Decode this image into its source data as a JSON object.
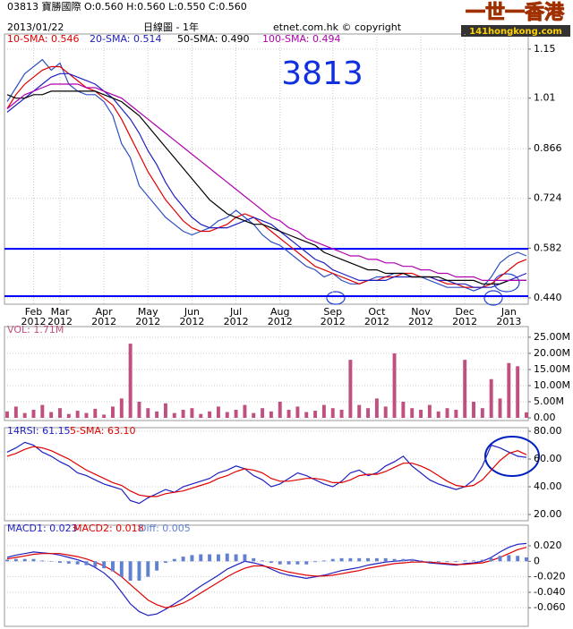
{
  "header": {
    "quote": "03813 寶勝國際  O:0.560 H:0.560 L:0.550  C:0.560",
    "date": "2013/01/22",
    "period": "日線圖 - 1年",
    "copyright": "etnet.com.hk © copyright"
  },
  "logo": {
    "title": "一世一香港",
    "url": "141hongkong.com"
  },
  "chart_data": [
    {
      "type": "line",
      "annotation": "3813",
      "grid": true,
      "categories": [
        null,
        null,
        null,
        "Feb 2012",
        null,
        null,
        "Mar 2012",
        null,
        null,
        null,
        null,
        "Apr 2012",
        null,
        null,
        null,
        null,
        "May 2012",
        null,
        null,
        null,
        null,
        "Jun 2012",
        null,
        null,
        null,
        null,
        "Jul 2012",
        null,
        null,
        null,
        null,
        "Aug 2012",
        null,
        null,
        null,
        null,
        null,
        "Sep 2012",
        null,
        null,
        null,
        null,
        "Oct 2012",
        null,
        null,
        null,
        null,
        "Nov 2012",
        null,
        null,
        null,
        null,
        "Dec 2012",
        null,
        null,
        null,
        null,
        "Jan 2013",
        null,
        null
      ],
      "ylim": [
        0.422,
        1.188
      ],
      "yticks": [
        1.15,
        1.01,
        0.866,
        0.724,
        0.582,
        {
          "value": 0.44,
          "label": "0.440"
        }
      ],
      "hlines": [
        {
          "value": 0.58,
          "color": "#0000ff"
        },
        {
          "value": 0.445,
          "color": "#0000ff"
        }
      ],
      "series": [
        {
          "color": "#3050c0",
          "values": [
            1.0,
            1.04,
            1.08,
            1.1,
            1.12,
            1.09,
            1.11,
            1.05,
            1.03,
            1.02,
            1.02,
            1.0,
            0.96,
            0.88,
            0.84,
            0.76,
            0.73,
            0.7,
            0.67,
            0.65,
            0.63,
            0.62,
            0.63,
            0.64,
            0.66,
            0.67,
            0.69,
            0.67,
            0.65,
            0.62,
            0.6,
            0.59,
            0.57,
            0.55,
            0.53,
            0.52,
            0.5,
            0.51,
            0.49,
            0.48,
            0.48,
            0.49,
            0.5,
            0.5,
            0.51,
            0.51,
            0.5,
            0.5,
            0.49,
            0.48,
            0.47,
            0.47,
            0.47,
            0.46,
            0.47,
            0.5,
            0.54,
            0.56,
            0.57,
            0.56
          ]
        },
        {
          "name": "10-SMA: 0.546",
          "color": "#e00000",
          "values": [
            0.98,
            1.02,
            1.05,
            1.07,
            1.09,
            1.1,
            1.1,
            1.08,
            1.06,
            1.04,
            1.03,
            1.01,
            0.99,
            0.95,
            0.9,
            0.85,
            0.8,
            0.76,
            0.72,
            0.69,
            0.66,
            0.64,
            0.63,
            0.63,
            0.64,
            0.65,
            0.67,
            0.68,
            0.67,
            0.65,
            0.63,
            0.61,
            0.59,
            0.57,
            0.55,
            0.53,
            0.52,
            0.51,
            0.5,
            0.49,
            0.48,
            0.49,
            0.49,
            0.5,
            0.5,
            0.51,
            0.51,
            0.5,
            0.5,
            0.49,
            0.48,
            0.48,
            0.47,
            0.47,
            0.47,
            0.48,
            0.5,
            0.52,
            0.54,
            0.55
          ]
        },
        {
          "name": "20-SMA: 0.514",
          "color": "#2020c0",
          "values": [
            0.97,
            0.99,
            1.01,
            1.03,
            1.05,
            1.07,
            1.08,
            1.08,
            1.07,
            1.06,
            1.05,
            1.03,
            1.01,
            0.98,
            0.95,
            0.91,
            0.86,
            0.82,
            0.77,
            0.73,
            0.7,
            0.67,
            0.65,
            0.64,
            0.64,
            0.64,
            0.65,
            0.66,
            0.67,
            0.66,
            0.65,
            0.63,
            0.61,
            0.59,
            0.57,
            0.55,
            0.54,
            0.52,
            0.51,
            0.5,
            0.49,
            0.49,
            0.49,
            0.49,
            0.5,
            0.5,
            0.5,
            0.5,
            0.5,
            0.49,
            0.49,
            0.48,
            0.48,
            0.47,
            0.47,
            0.47,
            0.48,
            0.49,
            0.5,
            0.51
          ]
        },
        {
          "name": "50-SMA: 0.490",
          "color": "#000000",
          "values": [
            1.02,
            1.01,
            1.01,
            1.02,
            1.02,
            1.03,
            1.03,
            1.03,
            1.03,
            1.03,
            1.03,
            1.02,
            1.01,
            1.0,
            0.98,
            0.96,
            0.93,
            0.9,
            0.87,
            0.84,
            0.81,
            0.78,
            0.75,
            0.72,
            0.7,
            0.68,
            0.67,
            0.66,
            0.65,
            0.65,
            0.64,
            0.63,
            0.62,
            0.61,
            0.6,
            0.59,
            0.57,
            0.56,
            0.55,
            0.54,
            0.53,
            0.52,
            0.52,
            0.51,
            0.51,
            0.51,
            0.5,
            0.5,
            0.5,
            0.5,
            0.49,
            0.49,
            0.49,
            0.49,
            0.48,
            0.48,
            0.48,
            0.49,
            0.49,
            0.49
          ]
        },
        {
          "name": "100-SMA: 0.494",
          "color": "#b000b0",
          "values": [
            0.98,
            1.0,
            1.02,
            1.03,
            1.04,
            1.05,
            1.05,
            1.05,
            1.05,
            1.04,
            1.04,
            1.03,
            1.02,
            1.01,
            0.99,
            0.97,
            0.95,
            0.93,
            0.91,
            0.89,
            0.87,
            0.85,
            0.83,
            0.81,
            0.79,
            0.77,
            0.75,
            0.73,
            0.71,
            0.69,
            0.67,
            0.66,
            0.64,
            0.63,
            0.61,
            0.6,
            0.59,
            0.58,
            0.57,
            0.56,
            0.56,
            0.55,
            0.55,
            0.54,
            0.54,
            0.53,
            0.53,
            0.52,
            0.52,
            0.51,
            0.51,
            0.5,
            0.5,
            0.5,
            0.49,
            0.49,
            0.49,
            0.49,
            0.49,
            0.49
          ]
        }
      ]
    },
    {
      "type": "bar",
      "grid": true,
      "ylim": [
        -830000,
        28300000
      ],
      "yticks": [
        {
          "value": 25000000,
          "label": "25.00M"
        },
        {
          "value": 20000000,
          "label": "20.00M"
        },
        {
          "value": 15000000,
          "label": "15.00M"
        },
        {
          "value": 10000000,
          "label": "10.00M"
        },
        {
          "value": 5000000,
          "label": "5.00M"
        },
        {
          "value": 0,
          "label": "0.00"
        }
      ],
      "series": [
        {
          "name": "VOL: 1.71M",
          "color": "#c05080",
          "values": [
            2000000,
            3500000,
            1500000,
            2500000,
            4000000,
            1800000,
            3000000,
            1200000,
            2200000,
            1500000,
            2800000,
            1000000,
            3500000,
            6000000,
            23000000,
            5000000,
            3000000,
            2000000,
            4500000,
            1500000,
            2500000,
            3000000,
            1200000,
            2000000,
            3500000,
            1800000,
            2500000,
            4000000,
            1500000,
            3000000,
            2000000,
            5000000,
            2500000,
            3500000,
            1800000,
            2200000,
            4000000,
            3000000,
            2500000,
            18000000,
            4000000,
            3000000,
            6000000,
            3500000,
            20000000,
            5000000,
            3000000,
            2500000,
            4000000,
            2000000,
            3000000,
            2500000,
            18000000,
            5000000,
            3000000,
            12000000,
            6000000,
            17000000,
            16000000,
            1710000
          ]
        }
      ]
    },
    {
      "type": "line",
      "grid": true,
      "ylim": [
        15.5,
        82.6
      ],
      "yticks": [
        {
          "value": 80,
          "label": "80.00"
        },
        {
          "value": 60,
          "label": "60.00"
        },
        {
          "value": 40,
          "label": "40.00"
        },
        {
          "value": 20,
          "label": "20.00"
        }
      ],
      "series": [
        {
          "name": "14RSI: 61.15",
          "color": "#2020c0",
          "values": [
            65,
            68,
            72,
            70,
            65,
            62,
            58,
            55,
            50,
            48,
            45,
            42,
            40,
            38,
            30,
            28,
            32,
            35,
            38,
            36,
            40,
            42,
            44,
            46,
            50,
            52,
            55,
            53,
            48,
            45,
            40,
            42,
            46,
            50,
            48,
            45,
            42,
            40,
            44,
            50,
            52,
            48,
            50,
            55,
            58,
            62,
            55,
            50,
            45,
            42,
            40,
            38,
            40,
            45,
            55,
            70,
            68,
            65,
            62,
            61.15
          ]
        },
        {
          "name": "5-SMA: 63.10",
          "color": "#e00000",
          "values": [
            62,
            64,
            67,
            69,
            68,
            66,
            63,
            60,
            56,
            52,
            49,
            46,
            43,
            41,
            37,
            34,
            33,
            33,
            35,
            36,
            37,
            39,
            41,
            43,
            46,
            48,
            51,
            53,
            52,
            50,
            46,
            44,
            44,
            45,
            46,
            46,
            45,
            43,
            43,
            45,
            48,
            49,
            49,
            51,
            54,
            57,
            57,
            55,
            52,
            48,
            44,
            41,
            40,
            41,
            45,
            52,
            59,
            64,
            66,
            63.1
          ]
        }
      ]
    },
    {
      "type": "line",
      "grid": true,
      "ylim": [
        -0.084,
        0.0466
      ],
      "yticks": [
        {
          "value": 0.02,
          "label": "0.020"
        },
        0,
        {
          "value": -0.02,
          "label": "-0.020"
        },
        {
          "value": -0.04,
          "label": "-0.040"
        },
        {
          "value": -0.06,
          "label": "-0.060"
        }
      ],
      "series": [
        {
          "name": "MACD1: 0.023",
          "color": "#2020c0",
          "values": [
            0.005,
            0.008,
            0.01,
            0.012,
            0.011,
            0.01,
            0.008,
            0.005,
            0.002,
            -0.002,
            -0.008,
            -0.015,
            -0.025,
            -0.04,
            -0.055,
            -0.065,
            -0.07,
            -0.068,
            -0.062,
            -0.055,
            -0.048,
            -0.04,
            -0.032,
            -0.025,
            -0.018,
            -0.01,
            -0.005,
            0.0,
            -0.002,
            -0.005,
            -0.01,
            -0.015,
            -0.018,
            -0.02,
            -0.022,
            -0.02,
            -0.018,
            -0.015,
            -0.012,
            -0.01,
            -0.008,
            -0.005,
            -0.003,
            -0.001,
            0.0,
            0.001,
            0.002,
            0.0,
            -0.002,
            -0.003,
            -0.004,
            -0.005,
            -0.003,
            -0.002,
            0.0,
            0.005,
            0.012,
            0.018,
            0.022,
            0.023
          ]
        },
        {
          "name": "MACD2: 0.018",
          "color": "#e00000",
          "values": [
            0.003,
            0.005,
            0.007,
            0.009,
            0.01,
            0.01,
            0.01,
            0.008,
            0.006,
            0.003,
            -0.001,
            -0.006,
            -0.012,
            -0.02,
            -0.03,
            -0.04,
            -0.05,
            -0.056,
            -0.06,
            -0.058,
            -0.054,
            -0.048,
            -0.041,
            -0.034,
            -0.027,
            -0.02,
            -0.014,
            -0.009,
            -0.006,
            -0.006,
            -0.008,
            -0.011,
            -0.014,
            -0.016,
            -0.018,
            -0.019,
            -0.019,
            -0.018,
            -0.016,
            -0.014,
            -0.012,
            -0.009,
            -0.007,
            -0.005,
            -0.003,
            -0.002,
            -0.001,
            -0.001,
            -0.001,
            -0.002,
            -0.003,
            -0.004,
            -0.004,
            -0.003,
            -0.002,
            0.001,
            0.005,
            0.01,
            0.015,
            0.018
          ]
        },
        {
          "name": "Diff: 0.005",
          "color": "#6080d0",
          "style": "bar",
          "values": [
            0.002,
            0.003,
            0.003,
            0.003,
            0.001,
            0,
            -0.002,
            -0.003,
            -0.004,
            -0.005,
            -0.007,
            -0.009,
            -0.013,
            -0.02,
            -0.025,
            -0.025,
            -0.02,
            -0.012,
            -0.002,
            0.003,
            0.006,
            0.008,
            0.009,
            0.009,
            0.009,
            0.01,
            0.009,
            0.009,
            0.004,
            0.001,
            -0.002,
            -0.004,
            -0.004,
            -0.004,
            -0.004,
            -0.001,
            0.001,
            0.003,
            0.004,
            0.004,
            0.004,
            0.004,
            0.004,
            0.004,
            0.003,
            0.003,
            0.003,
            0.001,
            -0.001,
            -0.001,
            -0.001,
            -0.001,
            0.001,
            0.001,
            0.002,
            0.004,
            0.007,
            0.008,
            0.007,
            0.005
          ]
        }
      ]
    }
  ]
}
